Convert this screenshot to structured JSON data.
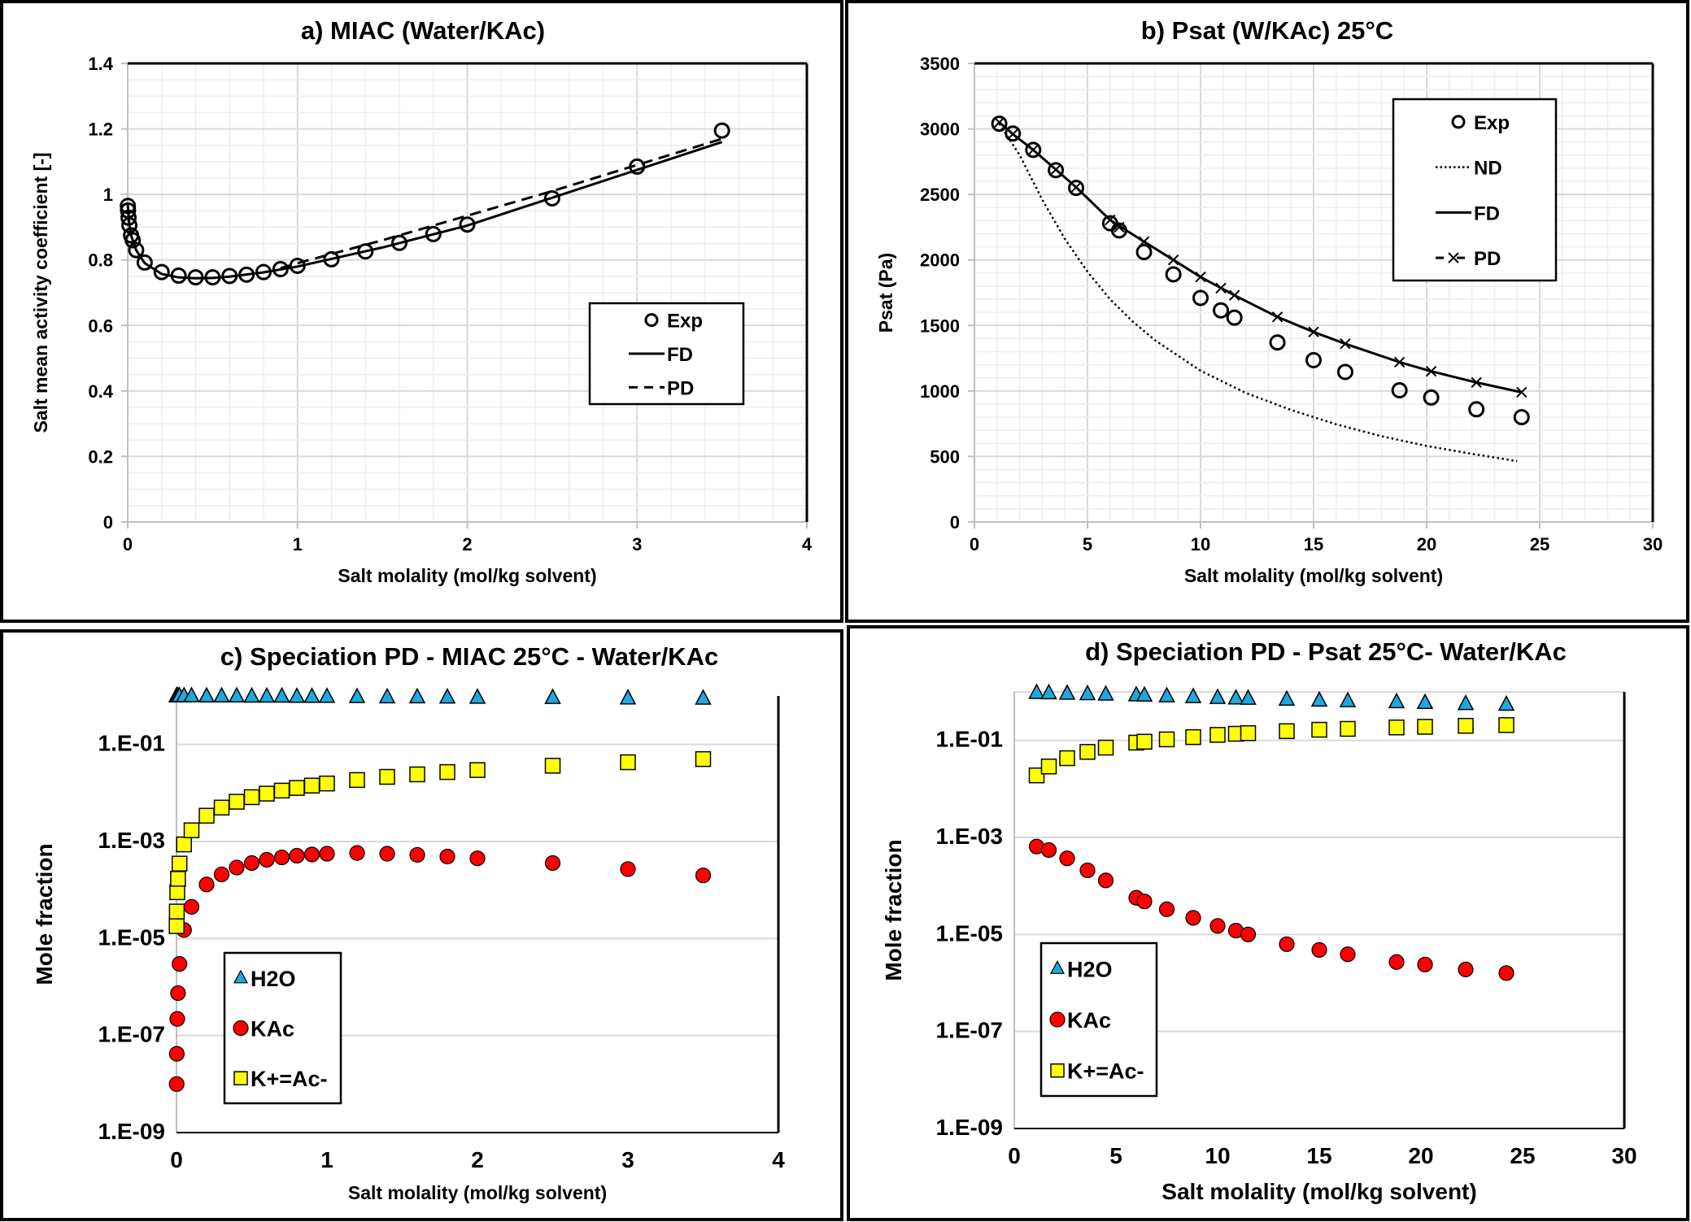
{
  "colors": {
    "h2o": "#1fa8e0",
    "kac": "#ff0000",
    "ion": "#ffff00",
    "line": "#000000",
    "grid_major": "#d9d9d9",
    "grid_minor": "#efefef"
  },
  "chart_data": [
    {
      "id": "a",
      "type": "scatter",
      "title": "a) MIAC (Water/KAc)",
      "xlabel": "Salt molality (mol/kg solvent)",
      "ylabel": "Salt mean activity coefficient [-]",
      "xlim": [
        0,
        4
      ],
      "ylim": [
        0,
        1.4
      ],
      "xticks": [
        "0",
        "1",
        "2",
        "3",
        "4"
      ],
      "yticks": [
        "0",
        "0.2",
        "0.4",
        "0.6",
        "0.8",
        "1",
        "1.2",
        "1.4"
      ],
      "grid": true,
      "legend": {
        "position": "right-middle",
        "entries": [
          "Exp",
          "FD",
          "PD"
        ]
      },
      "series": [
        {
          "name": "Exp",
          "kind": "open-circle",
          "x": [
            0.001,
            0.002,
            0.005,
            0.01,
            0.02,
            0.03,
            0.05,
            0.1,
            0.2,
            0.3,
            0.4,
            0.5,
            0.6,
            0.7,
            0.8,
            0.9,
            1.0,
            1.2,
            1.4,
            1.6,
            1.8,
            2.0,
            2.5,
            3.0,
            3.5
          ],
          "y": [
            0.965,
            0.951,
            0.929,
            0.906,
            0.875,
            0.86,
            0.83,
            0.792,
            0.763,
            0.752,
            0.747,
            0.747,
            0.751,
            0.755,
            0.763,
            0.772,
            0.782,
            0.802,
            0.826,
            0.852,
            0.879,
            0.908,
            0.988,
            1.085,
            1.195
          ]
        },
        {
          "name": "FD",
          "kind": "solid-line",
          "x": [
            0.0,
            0.01,
            0.02,
            0.05,
            0.1,
            0.2,
            0.3,
            0.4,
            0.5,
            0.6,
            0.8,
            1.0,
            1.5,
            2.0,
            2.5,
            3.0,
            3.5
          ],
          "y": [
            0.97,
            0.905,
            0.875,
            0.83,
            0.79,
            0.757,
            0.747,
            0.744,
            0.745,
            0.749,
            0.762,
            0.78,
            0.838,
            0.905,
            0.99,
            1.075,
            1.16
          ]
        },
        {
          "name": "PD",
          "kind": "dashed-line",
          "x": [
            0.9,
            1.0,
            1.5,
            2.0,
            2.5,
            3.0,
            3.5
          ],
          "y": [
            0.775,
            0.79,
            0.86,
            0.935,
            1.01,
            1.09,
            1.17
          ]
        }
      ]
    },
    {
      "id": "b",
      "type": "scatter",
      "title": "b) Psat (W/KAc) 25°C",
      "xlabel": "Salt molality (mol/kg solvent)",
      "ylabel": "Psat (Pa)",
      "xlim": [
        0,
        30
      ],
      "ylim": [
        0,
        3500
      ],
      "xticks": [
        "0",
        "5",
        "10",
        "15",
        "20",
        "25",
        "30"
      ],
      "yticks": [
        "0",
        "500",
        "1000",
        "1500",
        "2000",
        "2500",
        "3000",
        "3500"
      ],
      "grid": true,
      "legend": {
        "position": "top-right",
        "entries": [
          "Exp",
          "ND",
          "FD",
          "PD"
        ]
      },
      "series": [
        {
          "name": "Exp",
          "kind": "open-circle",
          "x": [
            1.1,
            1.7,
            2.6,
            3.6,
            4.5,
            6.0,
            6.4,
            7.5,
            8.8,
            10.0,
            10.9,
            11.5,
            13.4,
            15.0,
            16.4,
            18.8,
            20.2,
            22.2,
            24.2
          ],
          "y": [
            3040,
            2965,
            2840,
            2685,
            2550,
            2280,
            2225,
            2060,
            1890,
            1710,
            1615,
            1560,
            1370,
            1235,
            1145,
            1005,
            950,
            860,
            800
          ]
        },
        {
          "name": "ND",
          "kind": "dotted-line",
          "x": [
            1.1,
            2,
            3,
            4,
            5,
            6,
            7,
            8,
            10,
            12,
            14,
            16,
            18,
            20,
            22,
            24
          ],
          "y": [
            3040,
            2800,
            2460,
            2160,
            1910,
            1700,
            1530,
            1385,
            1155,
            985,
            855,
            745,
            655,
            580,
            520,
            465
          ]
        },
        {
          "name": "FD",
          "kind": "solid-line",
          "x": [
            1.1,
            1.7,
            2.6,
            3.6,
            4.5,
            6.0,
            7.5,
            8.8,
            10.0,
            11.5,
            13.4,
            15.0,
            16.4,
            18.8,
            20.2,
            22.2,
            24.2
          ],
          "y": [
            3050,
            2960,
            2840,
            2690,
            2555,
            2305,
            2140,
            2000,
            1870,
            1730,
            1565,
            1450,
            1360,
            1220,
            1150,
            1065,
            990
          ]
        },
        {
          "name": "PD",
          "kind": "cross-marker",
          "x": [
            1.1,
            1.7,
            2.6,
            3.6,
            4.5,
            6.0,
            6.4,
            7.5,
            8.8,
            10.0,
            10.9,
            11.5,
            13.4,
            15.0,
            16.4,
            18.8,
            20.2,
            22.2,
            24.2
          ],
          "y": [
            3050,
            2960,
            2840,
            2690,
            2555,
            2305,
            2250,
            2140,
            2000,
            1870,
            1785,
            1730,
            1565,
            1450,
            1360,
            1220,
            1150,
            1065,
            990
          ]
        }
      ]
    },
    {
      "id": "c",
      "type": "scatter",
      "title": "c) Speciation PD - MIAC 25°C - Water/KAc",
      "xlabel": "Salt molality  (mol/kg solvent)",
      "ylabel": "Mole fraction",
      "xlim": [
        0,
        4
      ],
      "ylim": [
        1e-09,
        1
      ],
      "yscale": "log",
      "xticks": [
        "0",
        "1",
        "2",
        "3",
        "4"
      ],
      "yticks": [
        "1.E-09",
        "1.E-07",
        "1.E-05",
        "1.E-03",
        "1.E-01"
      ],
      "grid": true,
      "legend": {
        "position": "bottom-left",
        "entries": [
          "H2O",
          "KAc",
          "K+=Ac-"
        ]
      },
      "series": [
        {
          "name": "H2O",
          "kind": "triangle",
          "x": [
            0.001,
            0.002,
            0.005,
            0.01,
            0.02,
            0.05,
            0.1,
            0.2,
            0.3,
            0.4,
            0.5,
            0.6,
            0.7,
            0.8,
            0.9,
            1.0,
            1.2,
            1.4,
            1.6,
            1.8,
            2.0,
            2.5,
            3.0,
            3.5
          ],
          "y": [
            1.0,
            1.0,
            1.0,
            1.0,
            1.0,
            1.0,
            1.0,
            0.99,
            0.99,
            0.99,
            0.98,
            0.98,
            0.98,
            0.97,
            0.97,
            0.97,
            0.96,
            0.95,
            0.95,
            0.94,
            0.93,
            0.92,
            0.9,
            0.89
          ]
        },
        {
          "name": "KAc",
          "kind": "circle",
          "x": [
            0.001,
            0.002,
            0.005,
            0.01,
            0.02,
            0.05,
            0.1,
            0.2,
            0.3,
            0.4,
            0.5,
            0.6,
            0.7,
            0.8,
            0.9,
            1.0,
            1.2,
            1.4,
            1.6,
            1.8,
            2.0,
            2.5,
            3.0,
            3.5
          ],
          "y": [
            1e-08,
            4.2e-08,
            2.2e-07,
            7.5e-07,
            3e-06,
            1.5e-05,
            4.5e-05,
            0.00013,
            0.00021,
            0.00029,
            0.00036,
            0.00042,
            0.00047,
            0.00051,
            0.00054,
            0.00056,
            0.00058,
            0.00056,
            0.00053,
            0.00049,
            0.00045,
            0.00036,
            0.00027,
            0.0002
          ]
        },
        {
          "name": "K+=Ac-",
          "kind": "square",
          "x": [
            0.001,
            0.002,
            0.005,
            0.01,
            0.02,
            0.05,
            0.1,
            0.2,
            0.3,
            0.4,
            0.5,
            0.6,
            0.7,
            0.8,
            0.9,
            1.0,
            1.2,
            1.4,
            1.6,
            1.8,
            2.0,
            2.5,
            3.0,
            3.5
          ],
          "y": [
            1.8e-05,
            3.6e-05,
            9e-05,
            0.00017,
            0.00035,
            0.00087,
            0.0017,
            0.0034,
            0.005,
            0.0066,
            0.0082,
            0.0097,
            0.0112,
            0.0127,
            0.0142,
            0.0157,
            0.0185,
            0.0215,
            0.0242,
            0.027,
            0.0297,
            0.0365,
            0.043,
            0.05
          ]
        }
      ]
    },
    {
      "id": "d",
      "type": "scatter",
      "title": "d) Speciation PD - Psat 25°C- Water/KAc",
      "xlabel": "Salt molality (mol/kg solvent)",
      "ylabel": "Mole fraction",
      "xlim": [
        0,
        30
      ],
      "ylim": [
        1e-09,
        1
      ],
      "yscale": "log",
      "xticks": [
        "0",
        "5",
        "10",
        "15",
        "20",
        "25",
        "30"
      ],
      "yticks": [
        "1.E-09",
        "1.E-07",
        "1.E-05",
        "1.E-03",
        "1.E-01"
      ],
      "grid": true,
      "legend": {
        "position": "bottom-left",
        "entries": [
          "H2O",
          "KAc",
          "K+=Ac-"
        ]
      },
      "series": [
        {
          "name": "H2O",
          "kind": "triangle",
          "x": [
            1.1,
            1.7,
            2.6,
            3.6,
            4.5,
            6.0,
            6.4,
            7.5,
            8.8,
            10.0,
            10.9,
            11.5,
            13.4,
            15.0,
            16.4,
            18.8,
            20.2,
            22.2,
            24.2
          ],
          "y": [
            0.96,
            0.95,
            0.93,
            0.91,
            0.89,
            0.86,
            0.85,
            0.82,
            0.79,
            0.76,
            0.74,
            0.73,
            0.7,
            0.67,
            0.65,
            0.62,
            0.6,
            0.57,
            0.55
          ]
        },
        {
          "name": "KAc",
          "kind": "circle",
          "x": [
            1.1,
            1.7,
            2.6,
            3.6,
            4.5,
            6.0,
            6.4,
            7.5,
            8.8,
            10.0,
            10.9,
            11.5,
            13.4,
            15.0,
            16.4,
            18.8,
            20.2,
            22.2,
            24.2
          ],
          "y": [
            0.00065,
            0.00055,
            0.00037,
            0.00021,
            0.00013,
            5.7e-05,
            4.8e-05,
            3.3e-05,
            2.2e-05,
            1.5e-05,
            1.2e-05,
            1e-05,
            6.3e-06,
            4.8e-06,
            3.9e-06,
            2.7e-06,
            2.4e-06,
            1.9e-06,
            1.6e-06
          ]
        },
        {
          "name": "K+=Ac-",
          "kind": "square",
          "x": [
            1.1,
            1.7,
            2.6,
            3.6,
            4.5,
            6.0,
            6.4,
            7.5,
            8.8,
            10.0,
            10.9,
            11.5,
            13.4,
            15.0,
            16.4,
            18.8,
            20.2,
            22.2,
            24.2
          ],
          "y": [
            0.019,
            0.029,
            0.043,
            0.058,
            0.071,
            0.09,
            0.094,
            0.105,
            0.117,
            0.13,
            0.137,
            0.141,
            0.155,
            0.166,
            0.173,
            0.185,
            0.191,
            0.2,
            0.207
          ]
        }
      ]
    }
  ]
}
